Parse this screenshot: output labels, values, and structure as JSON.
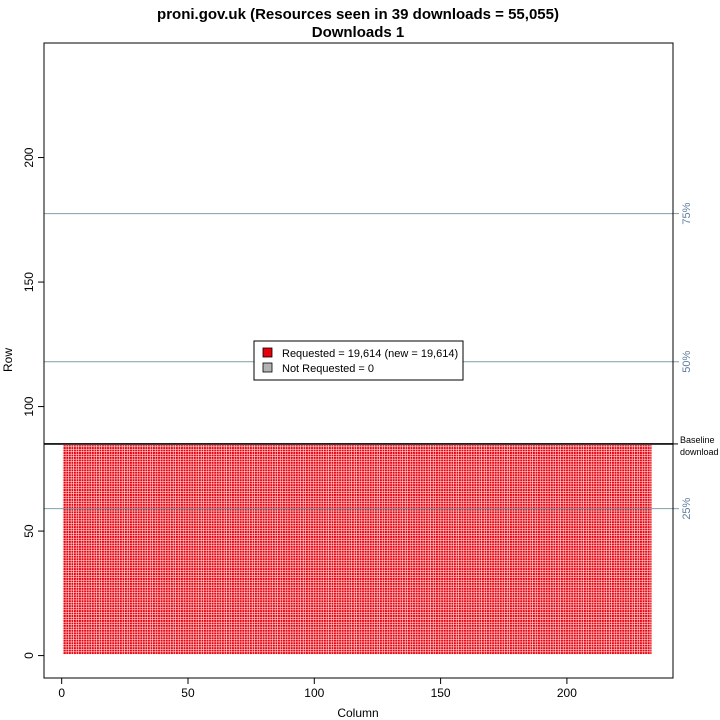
{
  "chart_data": {
    "type": "heatmap",
    "title": "proni.gov.uk (Resources seen in 39 downloads = 55,055)",
    "subtitle": "Downloads 1",
    "xlabel": "Column",
    "ylabel": "Row",
    "xlim": [
      -7,
      242
    ],
    "ylim": [
      -9,
      246
    ],
    "x_ticks": [
      0,
      50,
      100,
      150,
      200
    ],
    "y_ticks": [
      0,
      50,
      100,
      150,
      200
    ],
    "filled_region": {
      "x_from": 1,
      "x_to": 233,
      "y_from": 1,
      "y_to": 84
    },
    "baseline": {
      "y": 85,
      "label_line1": "Baseline",
      "label_line2": "download"
    },
    "percentile_lines": [
      {
        "y": 59,
        "label": "25%"
      },
      {
        "y": 118,
        "label": "50%"
      },
      {
        "y": 177.5,
        "label": "75%"
      }
    ],
    "series": [
      {
        "name": "Requested = 19,614 (new = 19,614)",
        "color": "#e8000b"
      },
      {
        "name": "Not Requested = 0",
        "color": "#b3b3b3"
      }
    ],
    "legend_placement": "center",
    "grid": false
  }
}
